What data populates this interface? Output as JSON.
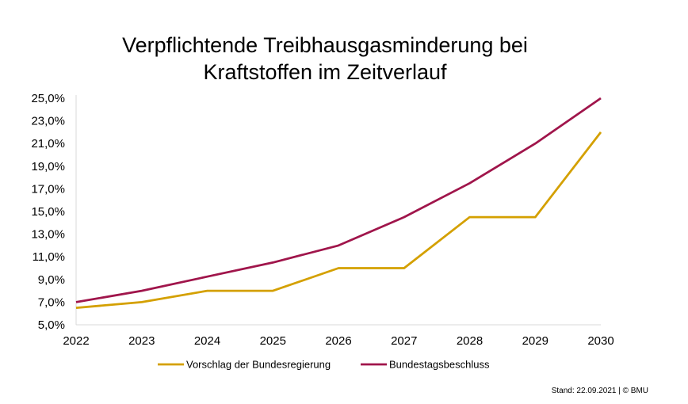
{
  "chart_data": {
    "type": "line",
    "title_line1": "Verpflichtende Treibhausgasminderung bei",
    "title_line2": "Kraftstoffen im Zeitverlauf",
    "x": [
      "2022",
      "2023",
      "2024",
      "2025",
      "2026",
      "2027",
      "2028",
      "2029",
      "2030"
    ],
    "y_ticks": [
      "5,0%",
      "7,0%",
      "9,0%",
      "11,0%",
      "13,0%",
      "15,0%",
      "17,0%",
      "19,0%",
      "21,0%",
      "23,0%",
      "25,0%"
    ],
    "ylim": [
      5,
      25
    ],
    "y_unit": "%",
    "grid": false,
    "legend_position": "bottom",
    "series": [
      {
        "name": "Vorschlag der Bundesregierung",
        "color": "#D4A000",
        "values": [
          6.5,
          7.0,
          8.0,
          8.0,
          10.0,
          10.0,
          14.5,
          14.5,
          22.0
        ]
      },
      {
        "name": "Bundestagsbeschluss",
        "color": "#A0154B",
        "values": [
          7.0,
          8.0,
          9.25,
          10.5,
          12.0,
          14.5,
          17.5,
          21.0,
          25.0
        ]
      }
    ]
  },
  "footer": "Stand: 22.09.2021 | © BMU"
}
